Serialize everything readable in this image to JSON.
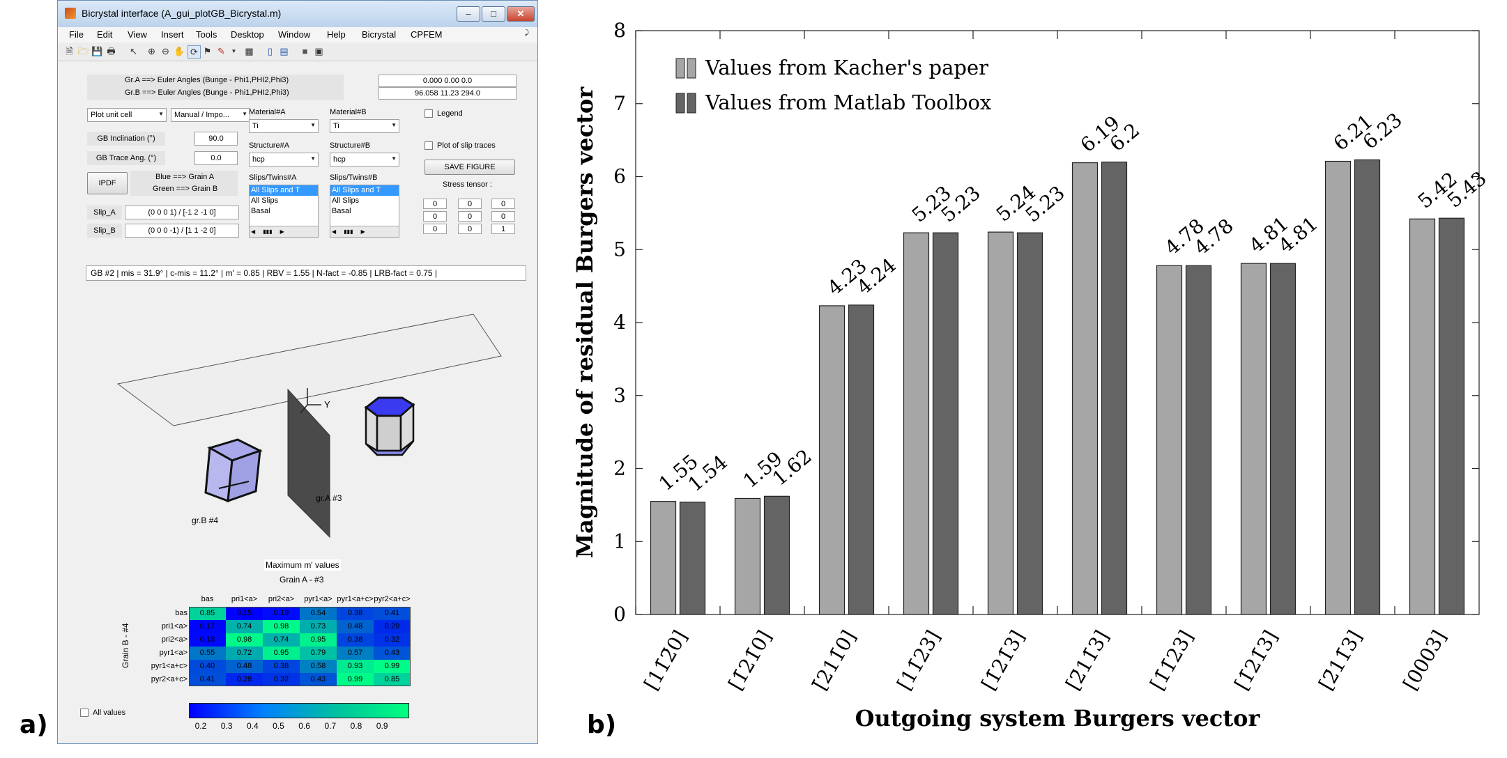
{
  "panel_a_label": "a)",
  "panel_b_label": "b)",
  "window": {
    "title": "Bicrystal interface (A_gui_plotGB_Bicrystal.m)",
    "menu": [
      "File",
      "Edit",
      "View",
      "Insert",
      "Tools",
      "Desktop",
      "Window",
      "Help",
      "Bicrystal",
      "CPFEM"
    ]
  },
  "euler": {
    "label_a": "Gr.A ==> Euler Angles (Bunge - Phi1,PHI2,Phi3)",
    "label_b": "Gr.B ==> Euler Angles (Bunge - Phi1,PHI2,Phi3)",
    "value_a": "0.000  0.00  0.0",
    "value_b": "96.058  11.23  294.0"
  },
  "controls": {
    "plot_unit_cell": "Plot unit cell",
    "manual_import": "Manual / Impo...",
    "gb_inclination_label": "GB Inclination (°)",
    "gb_inclination": "90.0",
    "gb_trace_label": "GB Trace Ang. (°)",
    "gb_trace": "0.0",
    "ipdf_button": "IPDF",
    "blue_grain": "Blue ==> Grain A",
    "green_grain": "Green ==> Grain B",
    "slip_a_label": "Slip_A",
    "slip_a": "(0  0  0  1) / [-1  2 -1  0]",
    "slip_b_label": "Slip_B",
    "slip_b": "(0  0  0 -1) / [1  1 -2  0]",
    "material_a_label": "Material#A",
    "material_a": "Ti",
    "material_b_label": "Material#B",
    "material_b": "Ti",
    "structure_a_label": "Structure#A",
    "structure_a": "hcp",
    "structure_b_label": "Structure#B",
    "structure_b": "hcp",
    "slips_a_label": "Slips/Twins#A",
    "slips_b_label": "Slips/Twins#B",
    "slips_items": [
      "All Slips and T",
      "All Slips",
      "Basal"
    ],
    "legend_label": "Legend",
    "plot_slip_traces_label": "Plot of slip traces",
    "save_figure": "SAVE FIGURE",
    "stress_tensor_label": "Stress tensor :",
    "stress_tensor": [
      "0",
      "0",
      "0",
      "0",
      "0",
      "0",
      "0",
      "0",
      "1"
    ],
    "all_values_label": "All values"
  },
  "gb_info": "GB #2 | mis = 31.9° | c-mis = 11.2° | m' = 0.85 | RBV = 1.55 | N-fact = -0.85 | LRB-fact = 0.75 |",
  "scene": {
    "axis_label": "Y",
    "grain_a_label": "gr.A #3",
    "grain_b_label": "gr.B #4"
  },
  "heatmap": {
    "title": "Maximum m' values",
    "subtitle": "Grain A - #3",
    "ylabel": "Grain B - #4",
    "columns": [
      "bas",
      "pri1<a>",
      "pri2<a>",
      "pyr1<a>",
      "pyr1<a+c>",
      "pyr2<a+c>"
    ],
    "rows": [
      "bas",
      "pri1<a>",
      "pri2<a>",
      "pyr1<a>",
      "pyr1<a+c>",
      "pyr2<a+c>"
    ],
    "values": [
      [
        0.85,
        0.15,
        0.19,
        0.54,
        0.38,
        0.41
      ],
      [
        0.17,
        0.74,
        0.98,
        0.73,
        0.48,
        0.29
      ],
      [
        0.18,
        0.98,
        0.74,
        0.95,
        0.38,
        0.32
      ],
      [
        0.55,
        0.72,
        0.95,
        0.79,
        0.57,
        0.43
      ],
      [
        0.4,
        0.48,
        0.38,
        0.58,
        0.93,
        0.99
      ],
      [
        0.41,
        0.28,
        0.32,
        0.43,
        0.99,
        0.85
      ]
    ],
    "colorbar_ticks": [
      "0.2",
      "0.3",
      "0.4",
      "0.5",
      "0.6",
      "0.7",
      "0.8",
      "0.9"
    ]
  },
  "colors": {
    "bar_kacher": "#a6a6a6",
    "bar_matlab": "#646464"
  },
  "chart_data": {
    "type": "bar",
    "categories": [
      "[11̄2̄0]",
      "[1̄21̄0]",
      "[̄211̄0]",
      "[11̄23]",
      "[1̄21̄3]",
      "[2̄11̄3]",
      "[1̄1̄23]",
      "[1̄21̄3]",
      "[2̄11̄3]",
      "[0003]"
    ],
    "series": [
      {
        "name": "Values from Kacher's paper",
        "values": [
          1.55,
          1.59,
          4.23,
          5.23,
          5.24,
          6.19,
          4.78,
          4.81,
          6.21,
          5.42
        ],
        "labels": [
          "1.55",
          "1.59",
          "4.23",
          "5.23",
          "5.24",
          "6.19",
          "4.78",
          "4.81",
          "6.21",
          "5.42"
        ]
      },
      {
        "name": "Values from Matlab Toolbox",
        "values": [
          1.54,
          1.62,
          4.24,
          5.23,
          5.23,
          6.2,
          4.78,
          4.81,
          6.23,
          5.43
        ],
        "labels": [
          "1.54",
          "1.62",
          "4.24",
          "5.23",
          "5.23",
          "6.2",
          "4.78",
          "4.81",
          "6.23",
          "5.43"
        ]
      }
    ],
    "xlabel": "Outgoing system Burgers vector",
    "ylabel": "Magnitude of residual Burgers vector",
    "ylim": [
      0,
      8
    ],
    "yticks": [
      "0",
      "1",
      "2",
      "3",
      "4",
      "5",
      "6",
      "7",
      "8"
    ],
    "legend_position": "top-left",
    "grid": false
  }
}
